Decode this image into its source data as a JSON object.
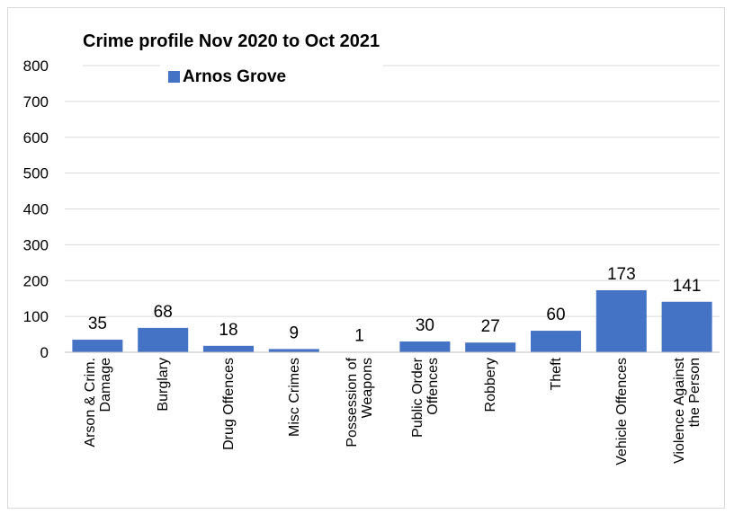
{
  "chart_data": {
    "type": "bar",
    "title": "Crime profile Nov 2020 to Oct 2021",
    "categories": [
      [
        "Arson & Crim.",
        "Damage"
      ],
      [
        "Burglary"
      ],
      [
        "Drug Offences"
      ],
      [
        "Misc Crimes"
      ],
      [
        "Possession of",
        "Weapons"
      ],
      [
        "Public Order",
        "Offences"
      ],
      [
        "Robbery"
      ],
      [
        "Theft"
      ],
      [
        "Vehicle Offences"
      ],
      [
        "Violence Against",
        "the Person"
      ]
    ],
    "series": [
      {
        "name": "Arnos Grove",
        "values": [
          35,
          68,
          18,
          9,
          1,
          30,
          27,
          60,
          173,
          141
        ],
        "color": "#4472c4"
      }
    ],
    "ylim": [
      0,
      800
    ],
    "yticks": [
      0,
      100,
      200,
      300,
      400,
      500,
      600,
      700,
      800
    ],
    "grid": true,
    "legend_position": "top-left",
    "xlabel": "",
    "ylabel": ""
  }
}
